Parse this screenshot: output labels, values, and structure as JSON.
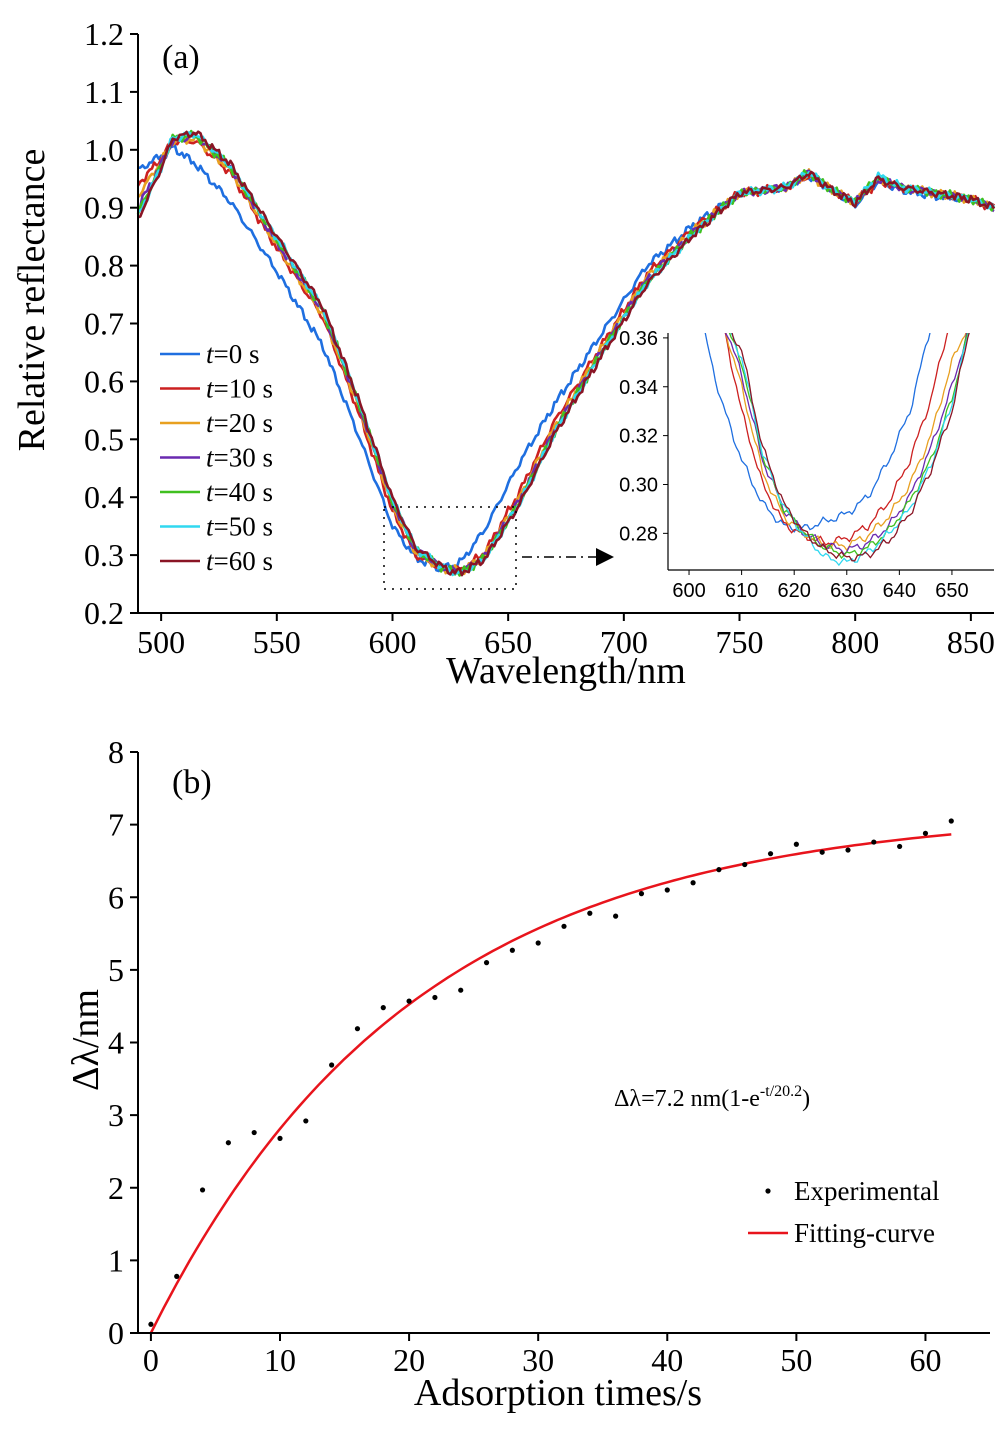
{
  "chart_data": [
    {
      "type": "line",
      "panel_label": "(a)",
      "xlabel": "Wavelength/nm",
      "ylabel": "Relative reflectance",
      "xlim": [
        490,
        860
      ],
      "ylim": [
        0.2,
        1.2
      ],
      "xticks": [
        "500",
        "550",
        "600",
        "650",
        "700",
        "750",
        "800",
        "850"
      ],
      "yticks": [
        "0.2",
        "0.3",
        "0.4",
        "0.5",
        "0.6",
        "0.7",
        "0.8",
        "0.9",
        "1.0",
        "1.1",
        "1.2"
      ],
      "legend_position": "left-center",
      "x": [
        490,
        500,
        505,
        515,
        530,
        550,
        570,
        585,
        600,
        610,
        620,
        625,
        630,
        640,
        655,
        670,
        690,
        710,
        730,
        750,
        770,
        780,
        790,
        800,
        810,
        820,
        835,
        850,
        860
      ],
      "series": [
        {
          "name": "t=0 s",
          "name_label": "t",
          "name_rest": "=0 s",
          "color": "#1f6fe0",
          "shift": 0,
          "values": [
            0.965,
            0.99,
            1.005,
            0.975,
            0.91,
            0.79,
            0.66,
            0.51,
            0.35,
            0.295,
            0.278,
            0.28,
            0.29,
            0.345,
            0.46,
            0.56,
            0.68,
            0.8,
            0.87,
            0.925,
            0.935,
            0.955,
            0.93,
            0.905,
            0.945,
            0.93,
            0.92,
            0.915,
            0.9
          ]
        },
        {
          "name": "t=10 s",
          "name_label": "t",
          "name_rest": "=10 s",
          "color": "#cc2020",
          "shift": 2.5,
          "values": [
            0.94,
            0.985,
            1.015,
            1.015,
            0.96,
            0.83,
            0.71,
            0.55,
            0.375,
            0.3,
            0.28,
            0.275,
            0.275,
            0.305,
            0.41,
            0.53,
            0.66,
            0.785,
            0.865,
            0.925,
            0.935,
            0.955,
            0.93,
            0.91,
            0.945,
            0.935,
            0.925,
            0.915,
            0.9
          ]
        },
        {
          "name": "t=20 s",
          "name_label": "t",
          "name_rest": "=20 s",
          "color": "#e8a020",
          "shift": 3.5,
          "values": [
            0.92,
            0.98,
            1.015,
            1.02,
            0.965,
            0.835,
            0.715,
            0.56,
            0.385,
            0.305,
            0.28,
            0.275,
            0.272,
            0.3,
            0.4,
            0.52,
            0.655,
            0.78,
            0.86,
            0.925,
            0.935,
            0.958,
            0.93,
            0.91,
            0.948,
            0.935,
            0.925,
            0.915,
            0.9
          ]
        },
        {
          "name": "t=30 s",
          "name_label": "t",
          "name_rest": "=30 s",
          "color": "#6a2ab0",
          "shift": 4.5,
          "values": [
            0.9,
            0.975,
            1.015,
            1.025,
            0.97,
            0.84,
            0.72,
            0.565,
            0.39,
            0.31,
            0.282,
            0.275,
            0.272,
            0.298,
            0.395,
            0.515,
            0.65,
            0.775,
            0.858,
            0.925,
            0.935,
            0.96,
            0.93,
            0.91,
            0.95,
            0.935,
            0.925,
            0.915,
            0.9
          ]
        },
        {
          "name": "t=40 s",
          "name_label": "t",
          "name_rest": "=40 s",
          "color": "#40c020",
          "shift": 5,
          "values": [
            0.89,
            0.972,
            1.02,
            1.025,
            0.97,
            0.845,
            0.722,
            0.568,
            0.392,
            0.31,
            0.282,
            0.273,
            0.27,
            0.296,
            0.392,
            0.512,
            0.648,
            0.772,
            0.856,
            0.925,
            0.935,
            0.962,
            0.93,
            0.91,
            0.955,
            0.935,
            0.925,
            0.915,
            0.9
          ]
        },
        {
          "name": "t=50 s",
          "name_label": "t",
          "name_rest": "=50 s",
          "color": "#30d8f0",
          "shift": 5.5,
          "values": [
            0.885,
            0.97,
            1.02,
            1.028,
            0.972,
            0.848,
            0.725,
            0.57,
            0.395,
            0.312,
            0.283,
            0.272,
            0.268,
            0.295,
            0.39,
            0.51,
            0.645,
            0.77,
            0.855,
            0.925,
            0.935,
            0.962,
            0.93,
            0.91,
            0.955,
            0.935,
            0.925,
            0.915,
            0.9
          ]
        },
        {
          "name": "t=60 s",
          "name_label": "t",
          "name_rest": "=60 s",
          "color": "#8a1525",
          "shift": 6,
          "values": [
            0.88,
            0.968,
            1.02,
            1.03,
            0.975,
            0.85,
            0.728,
            0.572,
            0.398,
            0.313,
            0.284,
            0.272,
            0.27,
            0.294,
            0.388,
            0.508,
            0.642,
            0.768,
            0.853,
            0.925,
            0.935,
            0.96,
            0.93,
            0.908,
            0.95,
            0.935,
            0.925,
            0.915,
            0.9
          ]
        }
      ],
      "inset": {
        "xlim": [
          596,
          658
        ],
        "ylim": [
          0.265,
          0.362
        ],
        "xticks": [
          "600",
          "610",
          "620",
          "630",
          "640",
          "650"
        ],
        "yticks": [
          "0.28",
          "0.30",
          "0.32",
          "0.34",
          "0.36"
        ],
        "x": [
          602,
          606,
          610,
          614,
          618,
          622,
          626,
          630,
          634,
          638,
          642,
          646,
          650,
          654
        ],
        "series": [
          {
            "name": "t=0 s",
            "values": [
              0.37,
              0.335,
              0.31,
              0.292,
              0.283,
              0.282,
              0.285,
              0.288,
              0.295,
              0.31,
              0.33,
              0.365,
              0.37,
              0.37
            ]
          },
          {
            "name": "t=10 s",
            "values": [
              0.37,
              0.37,
              0.33,
              0.3,
              0.284,
              0.279,
              0.276,
              0.278,
              0.283,
              0.293,
              0.31,
              0.335,
              0.37,
              0.37
            ]
          },
          {
            "name": "t=20 s",
            "values": [
              0.37,
              0.37,
              0.34,
              0.305,
              0.287,
              0.28,
              0.275,
              0.275,
              0.279,
              0.287,
              0.3,
              0.32,
              0.35,
              0.37
            ]
          },
          {
            "name": "t=30 s",
            "values": [
              0.37,
              0.37,
              0.345,
              0.31,
              0.29,
              0.28,
              0.275,
              0.273,
              0.276,
              0.283,
              0.295,
              0.315,
              0.34,
              0.37
            ]
          },
          {
            "name": "t=40 s",
            "values": [
              0.37,
              0.37,
              0.35,
              0.312,
              0.29,
              0.28,
              0.274,
              0.271,
              0.274,
              0.281,
              0.293,
              0.31,
              0.335,
              0.37
            ]
          },
          {
            "name": "t=50 s",
            "values": [
              0.37,
              0.37,
              0.352,
              0.313,
              0.291,
              0.279,
              0.27,
              0.268,
              0.272,
              0.28,
              0.29,
              0.308,
              0.333,
              0.37
            ]
          },
          {
            "name": "t=60 s",
            "values": [
              0.37,
              0.37,
              0.355,
              0.315,
              0.292,
              0.28,
              0.273,
              0.27,
              0.271,
              0.277,
              0.288,
              0.306,
              0.33,
              0.37
            ]
          }
        ]
      }
    },
    {
      "type": "scatter",
      "panel_label": "(b)",
      "xlabel": "Adsorption times/s",
      "ylabel": "Δλ/nm",
      "xlim": [
        -1,
        65
      ],
      "ylim": [
        0,
        8
      ],
      "xticks": [
        "0",
        "10",
        "20",
        "30",
        "40",
        "50",
        "60"
      ],
      "yticks": [
        "0",
        "1",
        "2",
        "3",
        "4",
        "5",
        "6",
        "7",
        "8"
      ],
      "legend_position": "bottom-right",
      "equation": {
        "prefix": "Δλ=7.2 nm(1-e",
        "superscript": "-t/20.2",
        "suffix": ")"
      },
      "series": [
        {
          "name": "Experimental",
          "color": "#000000",
          "x": [
            0,
            2,
            4,
            6,
            8,
            10,
            12,
            14,
            16,
            18,
            20,
            22,
            24,
            26,
            28,
            30,
            32,
            34,
            36,
            38,
            40,
            42,
            44,
            46,
            48,
            50,
            52,
            54,
            56,
            58,
            60,
            62
          ],
          "y": [
            0.12,
            0.78,
            1.97,
            2.62,
            2.76,
            2.68,
            2.92,
            3.69,
            4.19,
            4.48,
            4.57,
            4.62,
            4.72,
            5.1,
            5.27,
            5.37,
            5.6,
            5.78,
            5.74,
            6.05,
            6.1,
            6.2,
            6.38,
            6.45,
            6.6,
            6.73,
            6.62,
            6.65,
            6.76,
            6.7,
            6.88,
            7.05
          ]
        },
        {
          "name": "Fitting-curve",
          "color": "#e8141c",
          "amplitude": 7.2,
          "tau": 20.2,
          "x_range": [
            0,
            62
          ]
        }
      ]
    }
  ]
}
